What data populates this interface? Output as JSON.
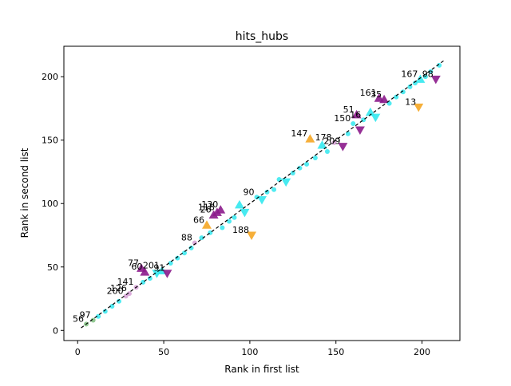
{
  "chart_data": {
    "type": "scatter",
    "title": "hits_hubs",
    "xlabel": "Rank in first list",
    "ylabel": "Rank in second list",
    "xlim": [
      -8,
      222
    ],
    "ylim": [
      -8,
      224
    ],
    "xticks": [
      0,
      50,
      100,
      150,
      200
    ],
    "yticks": [
      0,
      50,
      100,
      150,
      200
    ],
    "grid": false,
    "colors": {
      "cyan": "#33e8ee",
      "purple": "#8b1a8b",
      "orange": "#f5a623",
      "pink": "#d6a0d6",
      "green": "#7fbf7f",
      "diagonal": "#000000"
    },
    "diagonal_line": {
      "style": "dashed",
      "from": [
        2,
        2
      ],
      "to": [
        213,
        213
      ]
    },
    "points": [
      {
        "x": 5,
        "y": 5,
        "marker": "dot",
        "color": "green",
        "label": "56"
      },
      {
        "x": 9,
        "y": 8,
        "marker": "dot",
        "color": "green",
        "label": "97"
      },
      {
        "x": 12,
        "y": 11,
        "marker": "dot",
        "color": "cyan"
      },
      {
        "x": 16,
        "y": 15,
        "marker": "dot",
        "color": "cyan"
      },
      {
        "x": 20,
        "y": 19,
        "marker": "dot",
        "color": "cyan"
      },
      {
        "x": 24,
        "y": 23,
        "marker": "dot",
        "color": "cyan"
      },
      {
        "x": 28,
        "y": 27,
        "marker": "dot",
        "color": "pink",
        "label": "200"
      },
      {
        "x": 30,
        "y": 29,
        "marker": "dot",
        "color": "pink",
        "label": "126"
      },
      {
        "x": 34,
        "y": 34,
        "marker": "dot",
        "color": "pink",
        "label": "141"
      },
      {
        "x": 38,
        "y": 38,
        "marker": "dot",
        "color": "cyan"
      },
      {
        "x": 37,
        "y": 49,
        "marker": "tri-up",
        "color": "purple",
        "label": "77"
      },
      {
        "x": 39,
        "y": 46,
        "marker": "tri-up",
        "color": "purple",
        "label": "60"
      },
      {
        "x": 42,
        "y": 41,
        "marker": "dot",
        "color": "cyan"
      },
      {
        "x": 46,
        "y": 45,
        "marker": "tri-down",
        "color": "cyan"
      },
      {
        "x": 49,
        "y": 47,
        "marker": "tri-up",
        "color": "cyan",
        "label": "201"
      },
      {
        "x": 52,
        "y": 45,
        "marker": "tri-down",
        "color": "purple",
        "label": "91"
      },
      {
        "x": 54,
        "y": 53,
        "marker": "dot",
        "color": "cyan"
      },
      {
        "x": 58,
        "y": 57,
        "marker": "dot",
        "color": "cyan"
      },
      {
        "x": 62,
        "y": 61,
        "marker": "dot",
        "color": "cyan"
      },
      {
        "x": 66,
        "y": 65,
        "marker": "dot",
        "color": "cyan"
      },
      {
        "x": 68,
        "y": 69,
        "marker": "dot",
        "color": "pink",
        "label": "88"
      },
      {
        "x": 72,
        "y": 73,
        "marker": "dot",
        "color": "cyan"
      },
      {
        "x": 75,
        "y": 83,
        "marker": "tri-up",
        "color": "orange",
        "label": "66"
      },
      {
        "x": 77,
        "y": 77,
        "marker": "dot",
        "color": "cyan"
      },
      {
        "x": 79,
        "y": 91,
        "marker": "tri-up",
        "color": "purple",
        "label": "26"
      },
      {
        "x": 81,
        "y": 93,
        "marker": "tri-up",
        "color": "purple",
        "label": "118"
      },
      {
        "x": 83,
        "y": 95,
        "marker": "tri-up",
        "color": "purple",
        "label": "130"
      },
      {
        "x": 84,
        "y": 81,
        "marker": "dot",
        "color": "cyan"
      },
      {
        "x": 88,
        "y": 86,
        "marker": "dot",
        "color": "cyan"
      },
      {
        "x": 91,
        "y": 89,
        "marker": "dot",
        "color": "cyan"
      },
      {
        "x": 94,
        "y": 99,
        "marker": "tri-up",
        "color": "cyan"
      },
      {
        "x": 97,
        "y": 93,
        "marker": "tri-down",
        "color": "cyan"
      },
      {
        "x": 101,
        "y": 75,
        "marker": "tri-down",
        "color": "orange",
        "label": "188"
      },
      {
        "x": 104,
        "y": 105,
        "marker": "dot",
        "color": "cyan",
        "label": "90"
      },
      {
        "x": 107,
        "y": 103,
        "marker": "tri-down",
        "color": "cyan"
      },
      {
        "x": 110,
        "y": 109,
        "marker": "dot",
        "color": "cyan"
      },
      {
        "x": 114,
        "y": 111,
        "marker": "dot",
        "color": "cyan"
      },
      {
        "x": 117,
        "y": 119,
        "marker": "dot",
        "color": "cyan"
      },
      {
        "x": 121,
        "y": 117,
        "marker": "tri-down",
        "color": "cyan"
      },
      {
        "x": 125,
        "y": 124,
        "marker": "dot",
        "color": "cyan"
      },
      {
        "x": 129,
        "y": 128,
        "marker": "dot",
        "color": "cyan"
      },
      {
        "x": 133,
        "y": 131,
        "marker": "dot",
        "color": "cyan"
      },
      {
        "x": 135,
        "y": 151,
        "marker": "tri-up",
        "color": "orange",
        "label": "147"
      },
      {
        "x": 138,
        "y": 136,
        "marker": "dot",
        "color": "cyan"
      },
      {
        "x": 142,
        "y": 146,
        "marker": "tri-up",
        "color": "cyan"
      },
      {
        "x": 145,
        "y": 141,
        "marker": "dot",
        "color": "cyan"
      },
      {
        "x": 149,
        "y": 148,
        "marker": "dot",
        "color": "pink",
        "label": "178"
      },
      {
        "x": 154,
        "y": 145,
        "marker": "tri-down",
        "color": "purple",
        "label": "209"
      },
      {
        "x": 157,
        "y": 155,
        "marker": "dot",
        "color": "cyan"
      },
      {
        "x": 160,
        "y": 163,
        "marker": "dot",
        "color": "cyan",
        "label": "150"
      },
      {
        "x": 162,
        "y": 170,
        "marker": "tri-up",
        "color": "purple",
        "label": "51"
      },
      {
        "x": 164,
        "y": 158,
        "marker": "tri-down",
        "color": "purple"
      },
      {
        "x": 166,
        "y": 166,
        "marker": "dot",
        "color": "cyan",
        "label": "16"
      },
      {
        "x": 170,
        "y": 172,
        "marker": "tri-up",
        "color": "cyan"
      },
      {
        "x": 173,
        "y": 168,
        "marker": "tri-down",
        "color": "cyan"
      },
      {
        "x": 175,
        "y": 183,
        "marker": "tri-up",
        "color": "purple",
        "label": "161"
      },
      {
        "x": 178,
        "y": 182,
        "marker": "tri-up",
        "color": "purple",
        "label": "35"
      },
      {
        "x": 181,
        "y": 179,
        "marker": "dot",
        "color": "cyan"
      },
      {
        "x": 185,
        "y": 184,
        "marker": "dot",
        "color": "cyan"
      },
      {
        "x": 189,
        "y": 188,
        "marker": "dot",
        "color": "cyan"
      },
      {
        "x": 193,
        "y": 192,
        "marker": "dot",
        "color": "cyan"
      },
      {
        "x": 196,
        "y": 195,
        "marker": "dot",
        "color": "cyan"
      },
      {
        "x": 198,
        "y": 176,
        "marker": "tri-down",
        "color": "orange",
        "label": "13"
      },
      {
        "x": 199,
        "y": 198,
        "marker": "tri-up",
        "color": "cyan",
        "label": "167"
      },
      {
        "x": 202,
        "y": 200,
        "marker": "dot",
        "color": "cyan"
      },
      {
        "x": 205,
        "y": 204,
        "marker": "dot",
        "color": "cyan"
      },
      {
        "x": 208,
        "y": 198,
        "marker": "tri-down",
        "color": "purple",
        "label": "98"
      },
      {
        "x": 210,
        "y": 209,
        "marker": "dot",
        "color": "cyan"
      }
    ]
  }
}
